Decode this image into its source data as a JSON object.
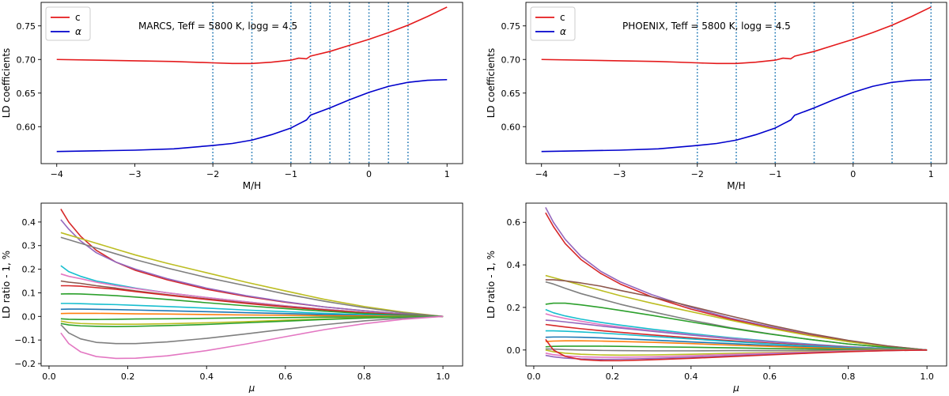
{
  "chart_data": [
    {
      "type": "line",
      "annotation": "MARCS, Teff = 5800 K, logg = 4.5",
      "xlabel": "M/H",
      "ylabel": "LD coefficients",
      "xlim": [
        -4.2,
        1.2
      ],
      "ylim": [
        0.545,
        0.785
      ],
      "xticks": [
        -4,
        -3,
        -2,
        -1,
        0,
        1
      ],
      "yticks": [
        0.6,
        0.65,
        0.7,
        0.75
      ],
      "legend": "top-left",
      "vlines": [
        -2,
        -1.5,
        -1,
        -0.75,
        -0.5,
        -0.25,
        0,
        0.25,
        0.5
      ],
      "series": [
        {
          "name": "c",
          "color": "#e41a1c",
          "x": [
            -4,
            -3,
            -2.5,
            -2,
            -1.75,
            -1.5,
            -1.25,
            -1,
            -0.9,
            -0.8,
            -0.75,
            -0.5,
            -0.25,
            0,
            0.25,
            0.5,
            0.75,
            1
          ],
          "y": [
            0.7,
            0.698,
            0.697,
            0.695,
            0.694,
            0.694,
            0.696,
            0.699,
            0.702,
            0.701,
            0.705,
            0.712,
            0.721,
            0.73,
            0.74,
            0.751,
            0.764,
            0.778
          ]
        },
        {
          "name": "α",
          "color": "#0000cc",
          "x": [
            -4,
            -3,
            -2.5,
            -2,
            -1.75,
            -1.5,
            -1.25,
            -1,
            -0.9,
            -0.8,
            -0.75,
            -0.5,
            -0.25,
            0,
            0.25,
            0.5,
            0.75,
            1
          ],
          "y": [
            0.563,
            0.565,
            0.567,
            0.572,
            0.575,
            0.58,
            0.588,
            0.598,
            0.604,
            0.61,
            0.617,
            0.628,
            0.64,
            0.651,
            0.66,
            0.666,
            0.669,
            0.67
          ]
        }
      ]
    },
    {
      "type": "line",
      "annotation": "PHOENIX, Teff = 5800 K, logg = 4.5",
      "xlabel": "M/H",
      "ylabel": "LD coefficients",
      "xlim": [
        -4.2,
        1.2
      ],
      "ylim": [
        0.545,
        0.785
      ],
      "xticks": [
        -4,
        -3,
        -2,
        -1,
        0,
        1
      ],
      "yticks": [
        0.6,
        0.65,
        0.7,
        0.75
      ],
      "legend": "top-left",
      "vlines": [
        -2,
        -1.5,
        -1,
        -0.5,
        0,
        0.5,
        1
      ],
      "series": [
        {
          "name": "c",
          "color": "#e41a1c",
          "x": [
            -4,
            -3,
            -2.5,
            -2,
            -1.75,
            -1.5,
            -1.25,
            -1,
            -0.9,
            -0.8,
            -0.75,
            -0.5,
            -0.25,
            0,
            0.25,
            0.5,
            0.75,
            1
          ],
          "y": [
            0.7,
            0.698,
            0.697,
            0.695,
            0.694,
            0.694,
            0.696,
            0.699,
            0.702,
            0.701,
            0.705,
            0.712,
            0.721,
            0.73,
            0.74,
            0.751,
            0.764,
            0.778
          ]
        },
        {
          "name": "α",
          "color": "#0000cc",
          "x": [
            -4,
            -3,
            -2.5,
            -2,
            -1.75,
            -1.5,
            -1.25,
            -1,
            -0.9,
            -0.8,
            -0.75,
            -0.5,
            -0.25,
            0,
            0.25,
            0.5,
            0.75,
            1
          ],
          "y": [
            0.563,
            0.565,
            0.567,
            0.572,
            0.575,
            0.58,
            0.588,
            0.598,
            0.604,
            0.61,
            0.617,
            0.628,
            0.64,
            0.651,
            0.66,
            0.666,
            0.669,
            0.67
          ]
        }
      ]
    },
    {
      "type": "line",
      "xlabel": "μ",
      "ylabel": "LD ratio - 1, %",
      "xlim": [
        -0.02,
        1.05
      ],
      "ylim": [
        -0.21,
        0.48
      ],
      "xticks": [
        0.0,
        0.2,
        0.4,
        0.6,
        0.8,
        1.0
      ],
      "yticks": [
        -0.2,
        -0.1,
        0.0,
        0.1,
        0.2,
        0.3,
        0.4
      ],
      "ytick_labels": [
        "−0.2",
        "−0.1",
        "0.0",
        "0.1",
        "0.2",
        "0.3",
        "0.4"
      ],
      "mu": [
        0.03,
        0.05,
        0.08,
        0.12,
        0.17,
        0.22,
        0.3,
        0.4,
        0.5,
        0.6,
        0.7,
        0.8,
        0.9,
        1.0
      ],
      "series": [
        {
          "color": "#d62728",
          "y": [
            0.455,
            0.4,
            0.34,
            0.28,
            0.23,
            0.195,
            0.155,
            0.115,
            0.085,
            0.06,
            0.04,
            0.024,
            0.01,
            0
          ]
        },
        {
          "color": "#9467bd",
          "y": [
            0.41,
            0.37,
            0.32,
            0.27,
            0.23,
            0.2,
            0.16,
            0.12,
            0.088,
            0.062,
            0.04,
            0.024,
            0.01,
            0
          ]
        },
        {
          "color": "#bcbd22",
          "y": [
            0.355,
            0.345,
            0.33,
            0.31,
            0.285,
            0.26,
            0.225,
            0.185,
            0.145,
            0.108,
            0.072,
            0.042,
            0.018,
            0
          ]
        },
        {
          "color": "#7f7f7f",
          "y": [
            0.335,
            0.325,
            0.31,
            0.29,
            0.265,
            0.24,
            0.205,
            0.165,
            0.13,
            0.095,
            0.064,
            0.037,
            0.015,
            0
          ]
        },
        {
          "color": "#17becf",
          "y": [
            0.215,
            0.19,
            0.17,
            0.15,
            0.135,
            0.12,
            0.1,
            0.08,
            0.062,
            0.045,
            0.03,
            0.017,
            0.007,
            0
          ]
        },
        {
          "color": "#e377c2",
          "y": [
            0.18,
            0.17,
            0.16,
            0.145,
            0.13,
            0.118,
            0.1,
            0.08,
            0.062,
            0.045,
            0.03,
            0.017,
            0.007,
            0
          ]
        },
        {
          "color": "#8c564b",
          "y": [
            0.15,
            0.145,
            0.14,
            0.13,
            0.12,
            0.108,
            0.092,
            0.074,
            0.057,
            0.042,
            0.028,
            0.016,
            0.007,
            0
          ]
        },
        {
          "color": "#d62728",
          "y": [
            0.13,
            0.13,
            0.128,
            0.122,
            0.115,
            0.105,
            0.09,
            0.072,
            0.055,
            0.04,
            0.027,
            0.015,
            0.006,
            0
          ]
        },
        {
          "color": "#2ca02c",
          "y": [
            0.095,
            0.096,
            0.095,
            0.092,
            0.088,
            0.082,
            0.072,
            0.058,
            0.045,
            0.033,
            0.022,
            0.012,
            0.005,
            0
          ]
        },
        {
          "color": "#17becf",
          "y": [
            0.055,
            0.055,
            0.054,
            0.052,
            0.05,
            0.047,
            0.042,
            0.035,
            0.027,
            0.02,
            0.013,
            0.007,
            0.003,
            0
          ]
        },
        {
          "color": "#1f77b4",
          "y": [
            0.03,
            0.031,
            0.031,
            0.03,
            0.029,
            0.027,
            0.024,
            0.02,
            0.016,
            0.012,
            0.008,
            0.004,
            0.002,
            0
          ]
        },
        {
          "color": "#ff7f0e",
          "y": [
            0.012,
            0.013,
            0.013,
            0.013,
            0.012,
            0.011,
            0.01,
            0.008,
            0.006,
            0.005,
            0.003,
            0.002,
            0.001,
            0
          ]
        },
        {
          "color": "#2ca02c",
          "y": [
            -0.01,
            -0.012,
            -0.013,
            -0.013,
            -0.012,
            -0.011,
            -0.01,
            -0.008,
            -0.006,
            -0.005,
            -0.003,
            -0.002,
            -0.001,
            0
          ]
        },
        {
          "color": "#bcbd22",
          "y": [
            -0.02,
            -0.026,
            -0.03,
            -0.032,
            -0.033,
            -0.033,
            -0.031,
            -0.027,
            -0.022,
            -0.016,
            -0.011,
            -0.006,
            -0.002,
            0
          ]
        },
        {
          "color": "#2ca02c",
          "y": [
            -0.03,
            -0.036,
            -0.04,
            -0.042,
            -0.043,
            -0.042,
            -0.039,
            -0.034,
            -0.027,
            -0.02,
            -0.013,
            -0.007,
            -0.003,
            0
          ]
        },
        {
          "color": "#7f7f7f",
          "y": [
            -0.035,
            -0.07,
            -0.095,
            -0.11,
            -0.115,
            -0.115,
            -0.108,
            -0.093,
            -0.074,
            -0.054,
            -0.035,
            -0.019,
            -0.007,
            0
          ]
        },
        {
          "color": "#e377c2",
          "y": [
            -0.07,
            -0.115,
            -0.15,
            -0.17,
            -0.178,
            -0.177,
            -0.167,
            -0.145,
            -0.117,
            -0.086,
            -0.056,
            -0.031,
            -0.012,
            0
          ]
        }
      ]
    },
    {
      "type": "line",
      "xlabel": "μ",
      "ylabel": "LD ratio - 1, %",
      "xlim": [
        -0.02,
        1.05
      ],
      "ylim": [
        -0.075,
        0.69
      ],
      "xticks": [
        0.0,
        0.2,
        0.4,
        0.6,
        0.8,
        1.0
      ],
      "yticks": [
        0.0,
        0.2,
        0.4,
        0.6
      ],
      "ytick_labels": [
        "0.0",
        "0.2",
        "0.4",
        "0.6"
      ],
      "mu": [
        0.03,
        0.05,
        0.08,
        0.12,
        0.17,
        0.22,
        0.3,
        0.4,
        0.5,
        0.6,
        0.7,
        0.8,
        0.9,
        1.0
      ],
      "series": [
        {
          "color": "#9467bd",
          "y": [
            0.67,
            0.6,
            0.52,
            0.44,
            0.37,
            0.32,
            0.26,
            0.2,
            0.15,
            0.11,
            0.072,
            0.042,
            0.018,
            0
          ]
        },
        {
          "color": "#d62728",
          "y": [
            0.645,
            0.58,
            0.5,
            0.425,
            0.36,
            0.31,
            0.25,
            0.192,
            0.145,
            0.105,
            0.07,
            0.04,
            0.017,
            0
          ]
        },
        {
          "color": "#bcbd22",
          "y": [
            0.35,
            0.34,
            0.325,
            0.305,
            0.28,
            0.255,
            0.22,
            0.18,
            0.14,
            0.102,
            0.068,
            0.039,
            0.016,
            0
          ]
        },
        {
          "color": "#8c564b",
          "y": [
            0.33,
            0.33,
            0.325,
            0.315,
            0.3,
            0.28,
            0.25,
            0.205,
            0.16,
            0.117,
            0.078,
            0.045,
            0.019,
            0
          ]
        },
        {
          "color": "#7f7f7f",
          "y": [
            0.32,
            0.31,
            0.29,
            0.265,
            0.24,
            0.215,
            0.18,
            0.14,
            0.105,
            0.076,
            0.05,
            0.028,
            0.012,
            0
          ]
        },
        {
          "color": "#2ca02c",
          "y": [
            0.215,
            0.22,
            0.22,
            0.212,
            0.2,
            0.186,
            0.163,
            0.132,
            0.102,
            0.075,
            0.05,
            0.028,
            0.012,
            0
          ]
        },
        {
          "color": "#17becf",
          "y": [
            0.19,
            0.175,
            0.16,
            0.145,
            0.13,
            0.117,
            0.098,
            0.077,
            0.058,
            0.042,
            0.028,
            0.016,
            0.007,
            0
          ]
        },
        {
          "color": "#e377c2",
          "y": [
            0.17,
            0.16,
            0.148,
            0.135,
            0.12,
            0.108,
            0.091,
            0.072,
            0.055,
            0.04,
            0.026,
            0.015,
            0.006,
            0
          ]
        },
        {
          "color": "#9467bd",
          "y": [
            0.14,
            0.138,
            0.132,
            0.124,
            0.113,
            0.103,
            0.088,
            0.07,
            0.053,
            0.039,
            0.026,
            0.015,
            0.006,
            0
          ]
        },
        {
          "color": "#d62728",
          "y": [
            0.12,
            0.115,
            0.108,
            0.1,
            0.091,
            0.083,
            0.071,
            0.057,
            0.044,
            0.032,
            0.021,
            0.012,
            0.005,
            0
          ]
        },
        {
          "color": "#17becf",
          "y": [
            0.09,
            0.09,
            0.088,
            0.085,
            0.08,
            0.074,
            0.064,
            0.052,
            0.04,
            0.029,
            0.019,
            0.011,
            0.005,
            0
          ]
        },
        {
          "color": "#1f77b4",
          "y": [
            0.06,
            0.061,
            0.061,
            0.06,
            0.057,
            0.053,
            0.047,
            0.038,
            0.03,
            0.022,
            0.014,
            0.008,
            0.003,
            0
          ]
        },
        {
          "color": "#ff7f0e",
          "y": [
            0.04,
            0.042,
            0.043,
            0.043,
            0.042,
            0.04,
            0.036,
            0.03,
            0.023,
            0.017,
            0.011,
            0.006,
            0.003,
            0
          ]
        },
        {
          "color": "#2ca02c",
          "y": [
            0.015,
            0.017,
            0.018,
            0.018,
            0.018,
            0.017,
            0.015,
            0.013,
            0.01,
            0.007,
            0.005,
            0.003,
            0.001,
            0
          ]
        },
        {
          "color": "#7f7f7f",
          "y": [
            0.005,
            0.004,
            0.002,
            0.0,
            -0.002,
            -0.003,
            -0.004,
            -0.004,
            -0.003,
            -0.003,
            -0.002,
            -0.001,
            0.0,
            0
          ]
        },
        {
          "color": "#bcbd22",
          "y": [
            0.0,
            -0.008,
            -0.015,
            -0.02,
            -0.023,
            -0.024,
            -0.023,
            -0.02,
            -0.016,
            -0.012,
            -0.008,
            -0.004,
            -0.002,
            0
          ]
        },
        {
          "color": "#e377c2",
          "y": [
            -0.015,
            -0.022,
            -0.028,
            -0.032,
            -0.034,
            -0.034,
            -0.032,
            -0.027,
            -0.021,
            -0.015,
            -0.01,
            -0.005,
            -0.002,
            0
          ]
        },
        {
          "color": "#9467bd",
          "y": [
            -0.025,
            -0.032,
            -0.038,
            -0.042,
            -0.044,
            -0.043,
            -0.04,
            -0.034,
            -0.027,
            -0.02,
            -0.013,
            -0.007,
            -0.003,
            0
          ]
        },
        {
          "color": "#d62728",
          "y": [
            0.05,
            0.0,
            -0.03,
            -0.045,
            -0.05,
            -0.05,
            -0.046,
            -0.039,
            -0.031,
            -0.023,
            -0.015,
            -0.008,
            -0.003,
            0
          ]
        }
      ]
    }
  ]
}
